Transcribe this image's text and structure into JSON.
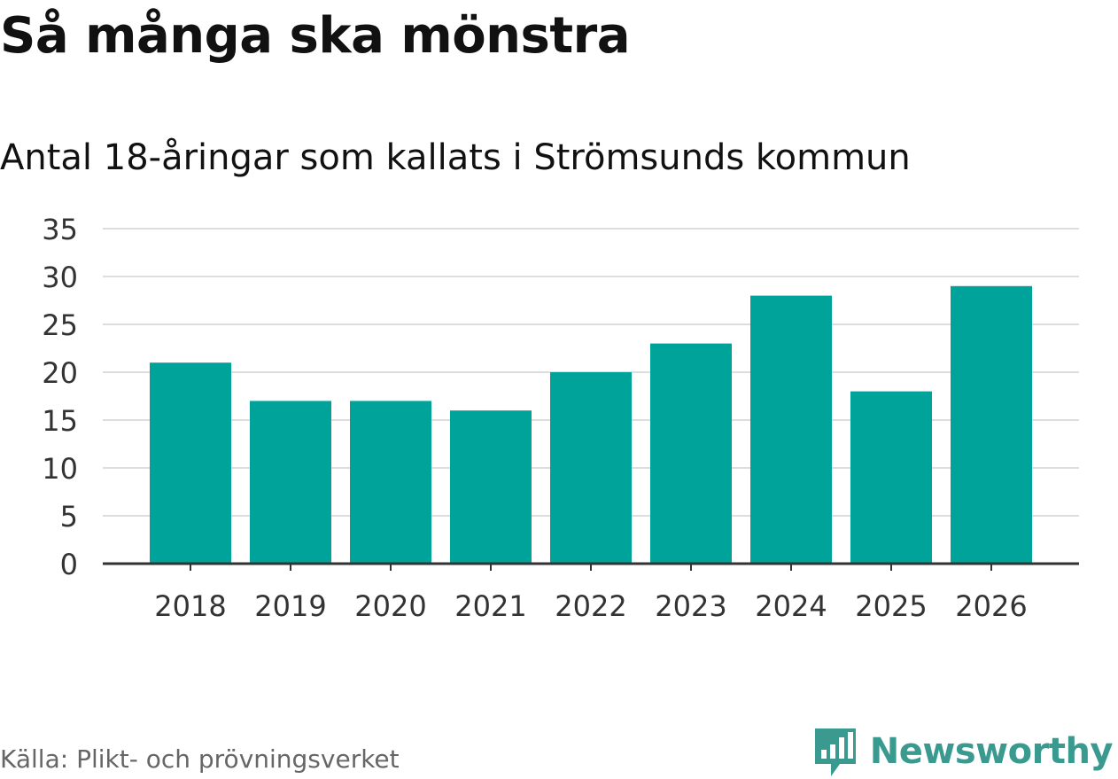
{
  "chart_data": {
    "type": "bar",
    "title": "Så många ska mönstra",
    "subtitle": "Antal 18-åringar som kallats i Strömsunds kommun",
    "categories": [
      "2018",
      "2019",
      "2020",
      "2021",
      "2022",
      "2023",
      "2024",
      "2025",
      "2026"
    ],
    "values": [
      21,
      17,
      17,
      16,
      20,
      23,
      28,
      18,
      29
    ],
    "yticks": [
      0,
      5,
      10,
      15,
      20,
      25,
      30,
      35
    ],
    "ylim": [
      0,
      35
    ],
    "xlabel": "",
    "ylabel": "",
    "grid": true,
    "bar_color": "#00a399"
  },
  "footer": {
    "source": "Källa: Plikt- och prövningsverket",
    "brand": "Newsworthy"
  },
  "colors": {
    "grid": "#dddddd",
    "axis": "#333333",
    "brand": "#3a9a8f"
  }
}
